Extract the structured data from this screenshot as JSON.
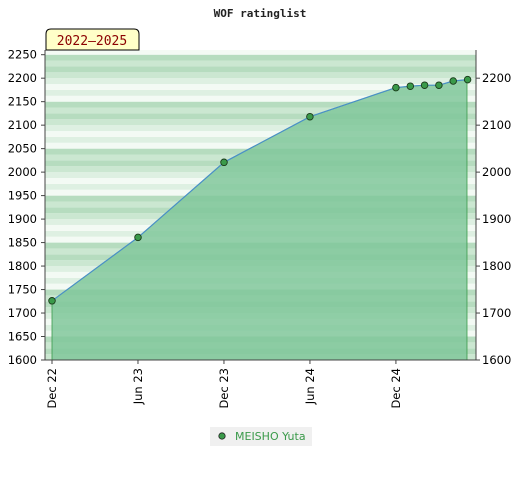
{
  "chart_data": {
    "type": "area",
    "title": "WOF ratinglist",
    "period_label": "2022–2025",
    "x_ticks": [
      "Dec 22",
      "Jun 23",
      "Dec 23",
      "Jun 24",
      "Dec 24"
    ],
    "x": [
      "Dec 22",
      "Jun 23",
      "Dec 23",
      "Jun 24",
      "Dec 24",
      "Jan 25",
      "Feb 25",
      "Mar 25",
      "Apr 25",
      "May 25"
    ],
    "series": [
      {
        "name": "MEISHO Yuta",
        "values": [
          1726,
          1861,
          2021,
          2118,
          2180,
          2183,
          2185,
          2185,
          2194,
          2197
        ]
      }
    ],
    "ylim": [
      1600,
      2260
    ],
    "y_ticks_left": [
      1600,
      1650,
      1700,
      1750,
      1800,
      1850,
      1900,
      1950,
      2000,
      2050,
      2100,
      2150,
      2200,
      2250
    ],
    "y_ticks_right": [
      1600,
      1700,
      1800,
      1900,
      2000,
      2100,
      2200
    ],
    "legend_position": "bottom-center",
    "colors": {
      "area": "#7ec699",
      "line": "#4a90c8",
      "marker": "#3a9a4a"
    }
  }
}
